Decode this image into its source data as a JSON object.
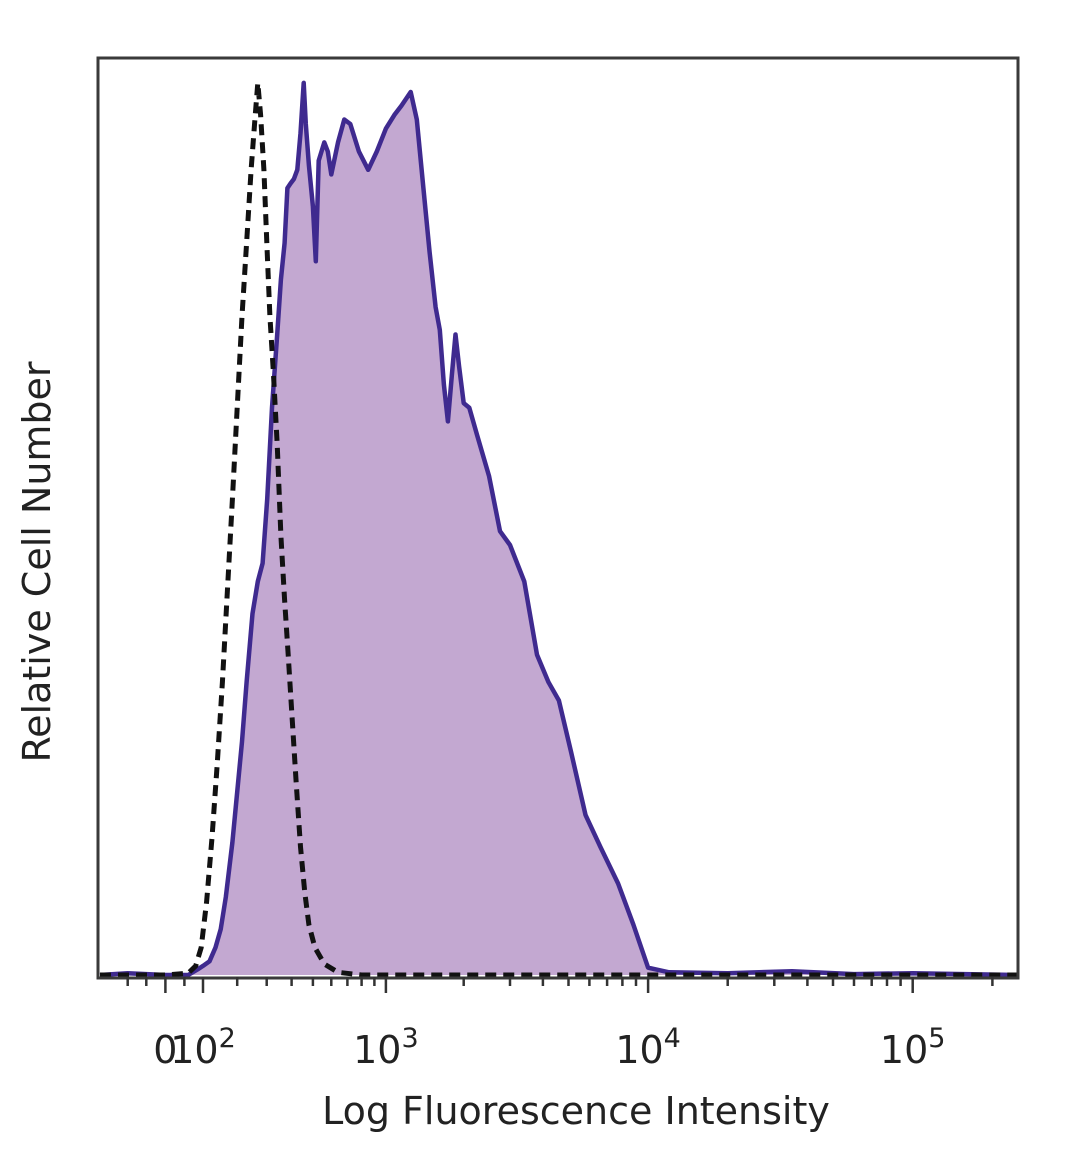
{
  "chart_data": {
    "type": "area",
    "title": "",
    "xlabel": "Log Fluorescence Intensity",
    "ylabel": "Relative Cell Number",
    "x_scale": "biexponential",
    "x_ticks": [
      {
        "value": 0,
        "base": "0",
        "exp": ""
      },
      {
        "value": 100,
        "base": "10",
        "exp": "2"
      },
      {
        "value": 1000,
        "base": "10",
        "exp": "3"
      },
      {
        "value": 10000,
        "base": "10",
        "exp": "4"
      },
      {
        "value": 100000,
        "base": "10",
        "exp": "5"
      }
    ],
    "xlim": [
      -180,
      250000
    ],
    "ylim": [
      0,
      1.0
    ],
    "grid": false,
    "legend": "none",
    "series": [
      {
        "style": "filled",
        "stroke": "#3f2a8f",
        "fill": "#c3a8d1",
        "points": [
          [
            -180,
            0.0
          ],
          [
            -100,
            0.002
          ],
          [
            0,
            0.0
          ],
          [
            60,
            0.0
          ],
          [
            85,
            0.006
          ],
          [
            100,
            0.01
          ],
          [
            118,
            0.015
          ],
          [
            135,
            0.03
          ],
          [
            150,
            0.05
          ],
          [
            165,
            0.085
          ],
          [
            185,
            0.145
          ],
          [
            200,
            0.2
          ],
          [
            215,
            0.255
          ],
          [
            230,
            0.32
          ],
          [
            250,
            0.395
          ],
          [
            268,
            0.43
          ],
          [
            285,
            0.45
          ],
          [
            302,
            0.52
          ],
          [
            320,
            0.62
          ],
          [
            340,
            0.7
          ],
          [
            355,
            0.76
          ],
          [
            370,
            0.8
          ],
          [
            382,
            0.86
          ],
          [
            395,
            0.865
          ],
          [
            410,
            0.87
          ],
          [
            425,
            0.88
          ],
          [
            440,
            0.92
          ],
          [
            455,
            0.975
          ],
          [
            465,
            0.93
          ],
          [
            480,
            0.885
          ],
          [
            500,
            0.84
          ],
          [
            515,
            0.78
          ],
          [
            530,
            0.89
          ],
          [
            545,
            0.9
          ],
          [
            560,
            0.91
          ],
          [
            580,
            0.9
          ],
          [
            600,
            0.875
          ],
          [
            640,
            0.91
          ],
          [
            680,
            0.935
          ],
          [
            720,
            0.93
          ],
          [
            780,
            0.9
          ],
          [
            850,
            0.88
          ],
          [
            920,
            0.9
          ],
          [
            1000,
            0.925
          ],
          [
            1080,
            0.94
          ],
          [
            1150,
            0.95
          ],
          [
            1250,
            0.965
          ],
          [
            1320,
            0.935
          ],
          [
            1400,
            0.86
          ],
          [
            1480,
            0.79
          ],
          [
            1560,
            0.73
          ],
          [
            1620,
            0.705
          ],
          [
            1680,
            0.645
          ],
          [
            1740,
            0.605
          ],
          [
            1800,
            0.655
          ],
          [
            1860,
            0.7
          ],
          [
            1920,
            0.665
          ],
          [
            2000,
            0.625
          ],
          [
            2100,
            0.62
          ],
          [
            2250,
            0.59
          ],
          [
            2500,
            0.545
          ],
          [
            2750,
            0.485
          ],
          [
            3000,
            0.47
          ],
          [
            3400,
            0.43
          ],
          [
            3800,
            0.35
          ],
          [
            4200,
            0.32
          ],
          [
            4600,
            0.3
          ],
          [
            5100,
            0.245
          ],
          [
            5800,
            0.175
          ],
          [
            6600,
            0.14
          ],
          [
            7700,
            0.1
          ],
          [
            8800,
            0.055
          ],
          [
            10000,
            0.008
          ],
          [
            12000,
            0.003
          ],
          [
            20000,
            0.002
          ],
          [
            35000,
            0.004
          ],
          [
            60000,
            0.001
          ],
          [
            100000,
            0.002
          ],
          [
            250000,
            0.0
          ]
        ]
      },
      {
        "style": "dashed",
        "stroke": "#111111",
        "points": [
          [
            -180,
            0.0
          ],
          [
            0,
            0.0
          ],
          [
            60,
            0.002
          ],
          [
            80,
            0.01
          ],
          [
            95,
            0.03
          ],
          [
            110,
            0.08
          ],
          [
            125,
            0.15
          ],
          [
            140,
            0.23
          ],
          [
            155,
            0.32
          ],
          [
            170,
            0.42
          ],
          [
            185,
            0.52
          ],
          [
            200,
            0.62
          ],
          [
            215,
            0.72
          ],
          [
            230,
            0.8
          ],
          [
            245,
            0.88
          ],
          [
            258,
            0.935
          ],
          [
            268,
            0.975
          ],
          [
            278,
            0.94
          ],
          [
            290,
            0.88
          ],
          [
            302,
            0.79
          ],
          [
            312,
            0.72
          ],
          [
            325,
            0.66
          ],
          [
            340,
            0.58
          ],
          [
            355,
            0.48
          ],
          [
            370,
            0.41
          ],
          [
            385,
            0.35
          ],
          [
            400,
            0.29
          ],
          [
            420,
            0.21
          ],
          [
            440,
            0.14
          ],
          [
            460,
            0.09
          ],
          [
            480,
            0.055
          ],
          [
            510,
            0.03
          ],
          [
            560,
            0.012
          ],
          [
            640,
            0.003
          ],
          [
            800,
            0.0
          ],
          [
            2000,
            0.0
          ],
          [
            250000,
            0.0
          ]
        ]
      }
    ]
  }
}
